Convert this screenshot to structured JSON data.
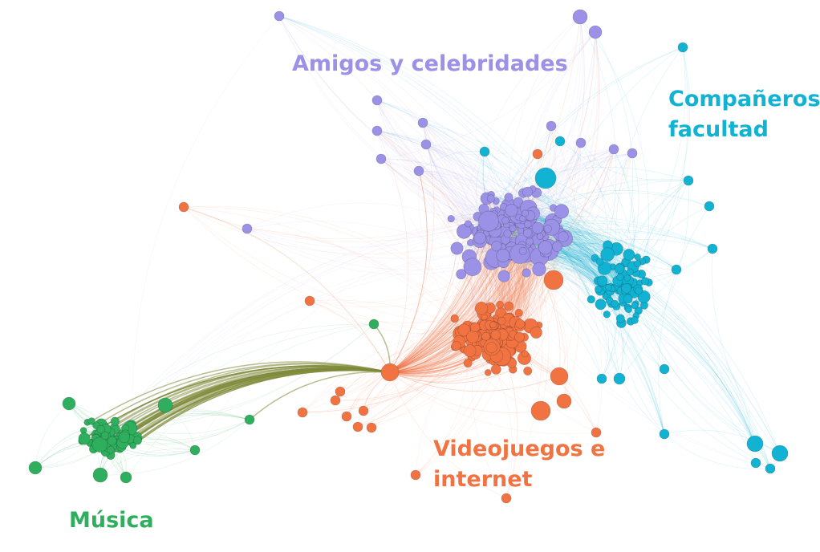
{
  "colors": {
    "amigos": "#9b91e6",
    "companeros": "#12b2d3",
    "videojuegos": "#f17342",
    "musica": "#2fae5e",
    "bridge_edge": "#808a3a"
  },
  "labels": {
    "amigos": "Amigos y celebridades",
    "companeros_line1": "Compañeros",
    "companeros_line2": "facultad",
    "videojuegos_line1": "Videojuegos e",
    "videojuegos_line2": "internet",
    "musica": "Música"
  }
}
